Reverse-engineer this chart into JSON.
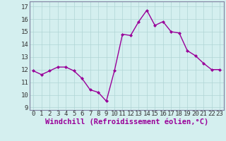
{
  "x": [
    0,
    1,
    2,
    3,
    4,
    5,
    6,
    7,
    8,
    9,
    10,
    11,
    12,
    13,
    14,
    15,
    16,
    17,
    18,
    19,
    20,
    21,
    22,
    23
  ],
  "y": [
    11.9,
    11.6,
    11.9,
    12.2,
    12.2,
    11.9,
    11.3,
    10.4,
    10.2,
    9.5,
    11.9,
    14.8,
    14.7,
    15.8,
    16.7,
    15.5,
    15.8,
    15.0,
    14.9,
    13.5,
    13.1,
    12.5,
    12.0,
    12.0
  ],
  "line_color": "#990099",
  "marker": "D",
  "marker_size": 2,
  "xlabel": "Windchill (Refroidissement éolien,°C)",
  "xlabel_fontsize": 7.5,
  "ylabel_ticks": [
    9,
    10,
    11,
    12,
    13,
    14,
    15,
    16,
    17
  ],
  "xlim": [
    -0.5,
    23.5
  ],
  "ylim": [
    8.8,
    17.4
  ],
  "bg_color": "#d4efef",
  "grid_color": "#afd4d4",
  "tick_fontsize": 6.5,
  "line_width": 1.0,
  "spine_color": "#8080a0"
}
